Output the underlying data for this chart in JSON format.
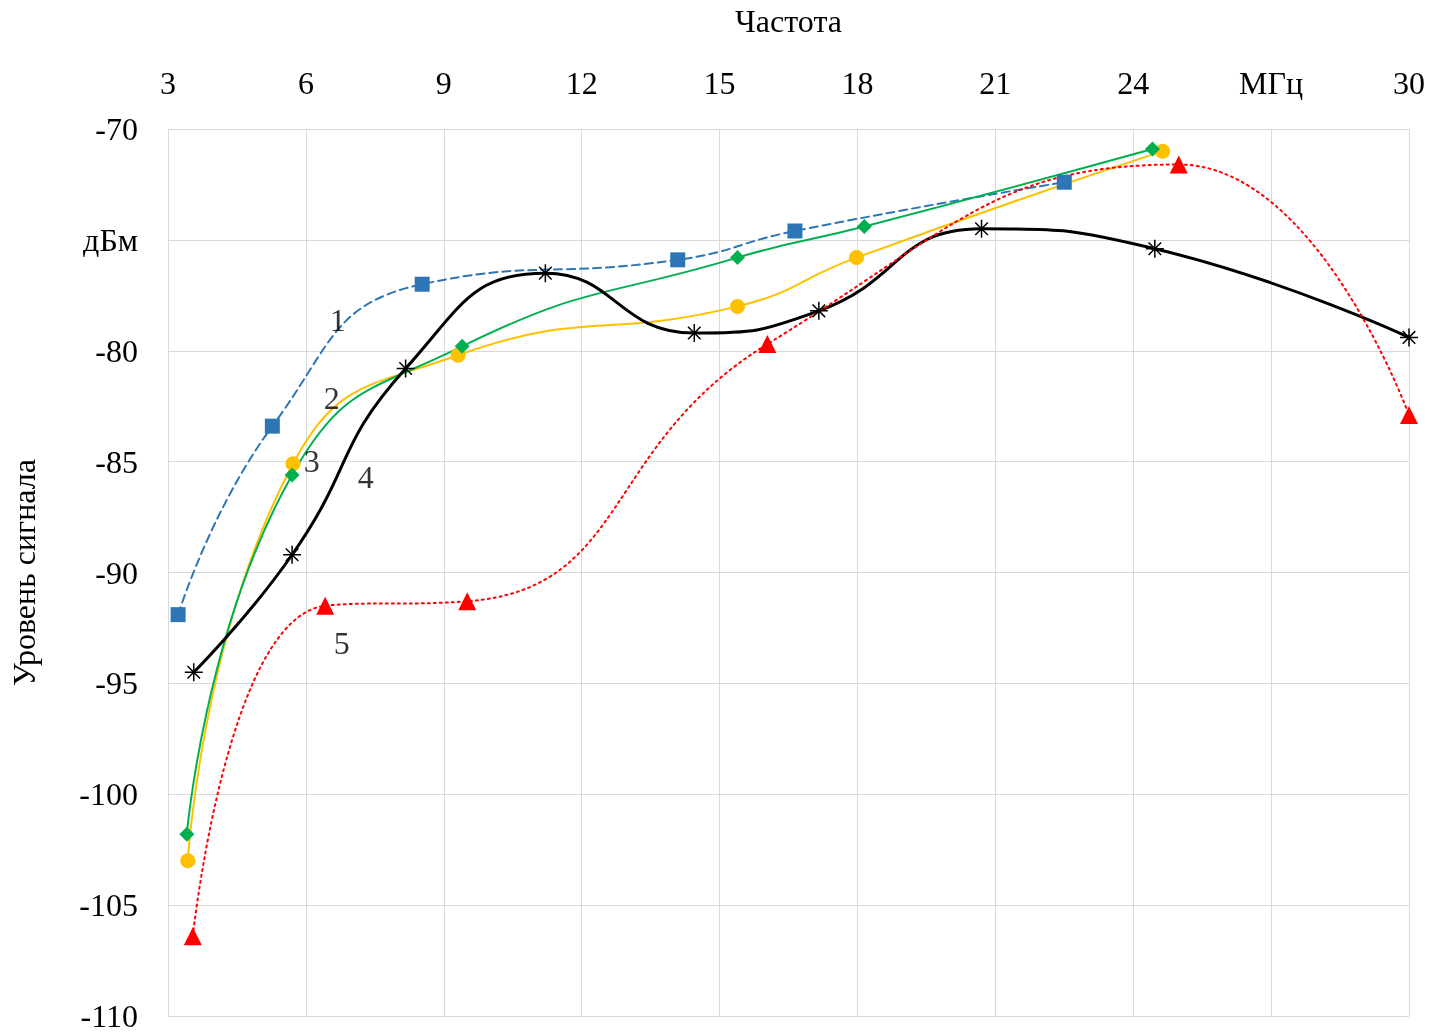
{
  "chart_data": {
    "type": "line",
    "xlabel": "Частота",
    "ylabel": "Уровень сигнала",
    "xlim": [
      3,
      30
    ],
    "xticks": [
      3,
      6,
      9,
      12,
      15,
      18,
      21,
      24,
      {
        "value": 27,
        "label": "МГц"
      },
      30
    ],
    "ylim": [
      -110,
      -70
    ],
    "yticks": [
      -110,
      -105,
      -100,
      -95,
      -90,
      -85,
      -80,
      {
        "value": -75,
        "label": "дБм"
      },
      -70
    ],
    "grid": true,
    "series": [
      {
        "name": "1",
        "color": "#2e75b6",
        "marker": "square",
        "line_style": "dashed",
        "x": [
          3.22,
          5.27,
          8.53,
          14.09,
          16.64,
          22.5
        ],
        "values": [
          -91.9,
          -83.4,
          -77.0,
          -75.9,
          -74.6,
          -72.4
        ]
      },
      {
        "name": "2",
        "color": "#ffc000",
        "marker": "circle",
        "line_style": "solid",
        "x": [
          3.43,
          5.72,
          9.31,
          15.39,
          17.98,
          24.64
        ],
        "values": [
          -103.0,
          -85.1,
          -80.2,
          -78.0,
          -75.8,
          -71.0
        ]
      },
      {
        "name": "3",
        "color": "#00b050",
        "marker": "diamond",
        "line_style": "solid",
        "x": [
          3.41,
          5.7,
          9.4,
          15.39,
          18.15,
          24.42
        ],
        "values": [
          -101.8,
          -85.6,
          -79.8,
          -75.8,
          -74.4,
          -70.9
        ]
      },
      {
        "name": "4",
        "color": "#000000",
        "marker": "cross",
        "line_style": "solid",
        "x": [
          3.56,
          5.7,
          8.17,
          11.21,
          14.45,
          17.16,
          20.7,
          24.47,
          30
        ],
        "values": [
          -94.5,
          -89.2,
          -80.8,
          -76.5,
          -79.2,
          -78.2,
          -74.5,
          -75.4,
          -79.4
        ]
      },
      {
        "name": "5",
        "color": "#ff0000",
        "marker": "triangle",
        "line_style": "dotted",
        "x": [
          3.54,
          6.42,
          9.51,
          16.04,
          24.99,
          30
        ],
        "values": [
          -106.4,
          -91.5,
          -91.3,
          -79.7,
          -71.6,
          -82.9
        ]
      }
    ]
  }
}
